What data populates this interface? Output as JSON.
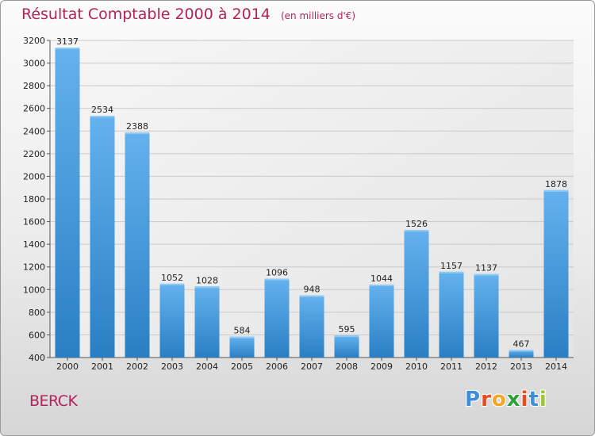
{
  "header": {
    "title": "Résultat Comptable 2000 à 2014",
    "subtitle": "(en milliers d'€)"
  },
  "footer": {
    "town": "BERCK",
    "logo_letters": [
      "P",
      "r",
      "o",
      "x",
      "i",
      "t",
      "i"
    ],
    "logo_colors": [
      "#3d8fd8",
      "#e84a22",
      "#f5a623",
      "#2f9f3a",
      "#e84a22",
      "#3d8fd8",
      "#9bc53d"
    ]
  },
  "chart_data": {
    "type": "bar",
    "title": "Résultat Comptable 2000 à 2014",
    "subtitle": "(en milliers d'€)",
    "xlabel": "",
    "ylabel": "",
    "categories": [
      "2000",
      "2001",
      "2002",
      "2003",
      "2004",
      "2005",
      "2006",
      "2007",
      "2008",
      "2009",
      "2010",
      "2011",
      "2012",
      "2013",
      "2014"
    ],
    "values": [
      3137,
      2534,
      2388,
      1052,
      1028,
      584,
      1096,
      948,
      595,
      1044,
      1526,
      1157,
      1137,
      467,
      1878
    ],
    "ylim": [
      400,
      3200
    ],
    "yticks": [
      400,
      600,
      800,
      1000,
      1200,
      1400,
      1600,
      1800,
      2000,
      2200,
      2400,
      2600,
      2800,
      3000,
      3200
    ],
    "grid": true,
    "bar_color": "#3a93d8"
  }
}
